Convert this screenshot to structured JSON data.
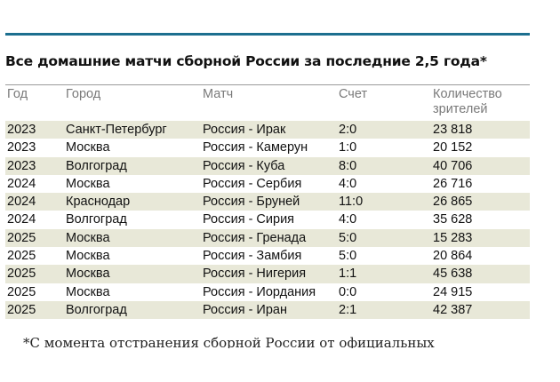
{
  "title": "Все домашние матчи сборной России за последние 2,5 года*",
  "columns": {
    "year": "Год",
    "city": "Город",
    "match": "Матч",
    "score": "Счет",
    "attendance": "Количество зрителей"
  },
  "rows": [
    {
      "year": "2023",
      "city": "Санкт-Петербург",
      "match": "Россия - Ирак",
      "score": "2:0",
      "attendance": "23 818"
    },
    {
      "year": "2023",
      "city": "Москва",
      "match": "Россия - Камерун",
      "score": "1:0",
      "attendance": "20 152"
    },
    {
      "year": "2023",
      "city": "Волгоград",
      "match": "Россия - Куба",
      "score": "8:0",
      "attendance": "40 706"
    },
    {
      "year": "2024",
      "city": "Москва",
      "match": "Россия - Сербия",
      "score": "4:0",
      "attendance": "26 716"
    },
    {
      "year": "2024",
      "city": "Краснодар",
      "match": "Россия - Бруней",
      "score": "11:0",
      "attendance": "26 865"
    },
    {
      "year": "2024",
      "city": "Волгоград",
      "match": "Россия - Сирия",
      "score": "4:0",
      "attendance": "35 628"
    },
    {
      "year": "2025",
      "city": "Москва",
      "match": "Россия - Гренада",
      "score": "5:0",
      "attendance": "15 283"
    },
    {
      "year": "2025",
      "city": "Москва",
      "match": "Россия - Замбия",
      "score": "5:0",
      "attendance": "20 864"
    },
    {
      "year": "2025",
      "city": "Москва",
      "match": "Россия - Нигерия",
      "score": "1:1",
      "attendance": "45 638"
    },
    {
      "year": "2025",
      "city": "Москва",
      "match": "Россия - Иордания",
      "score": "0:0",
      "attendance": "24 915"
    },
    {
      "year": "2025",
      "city": "Волгоград",
      "match": "Россия - Иран",
      "score": "2:1",
      "attendance": "42 387"
    }
  ],
  "footnote": "*С момента отстранения сборной России от официальных",
  "colors": {
    "accent_rule": "#1c6f8f",
    "row_band": "#e8e8d8",
    "header_text": "#7a7a7a"
  }
}
